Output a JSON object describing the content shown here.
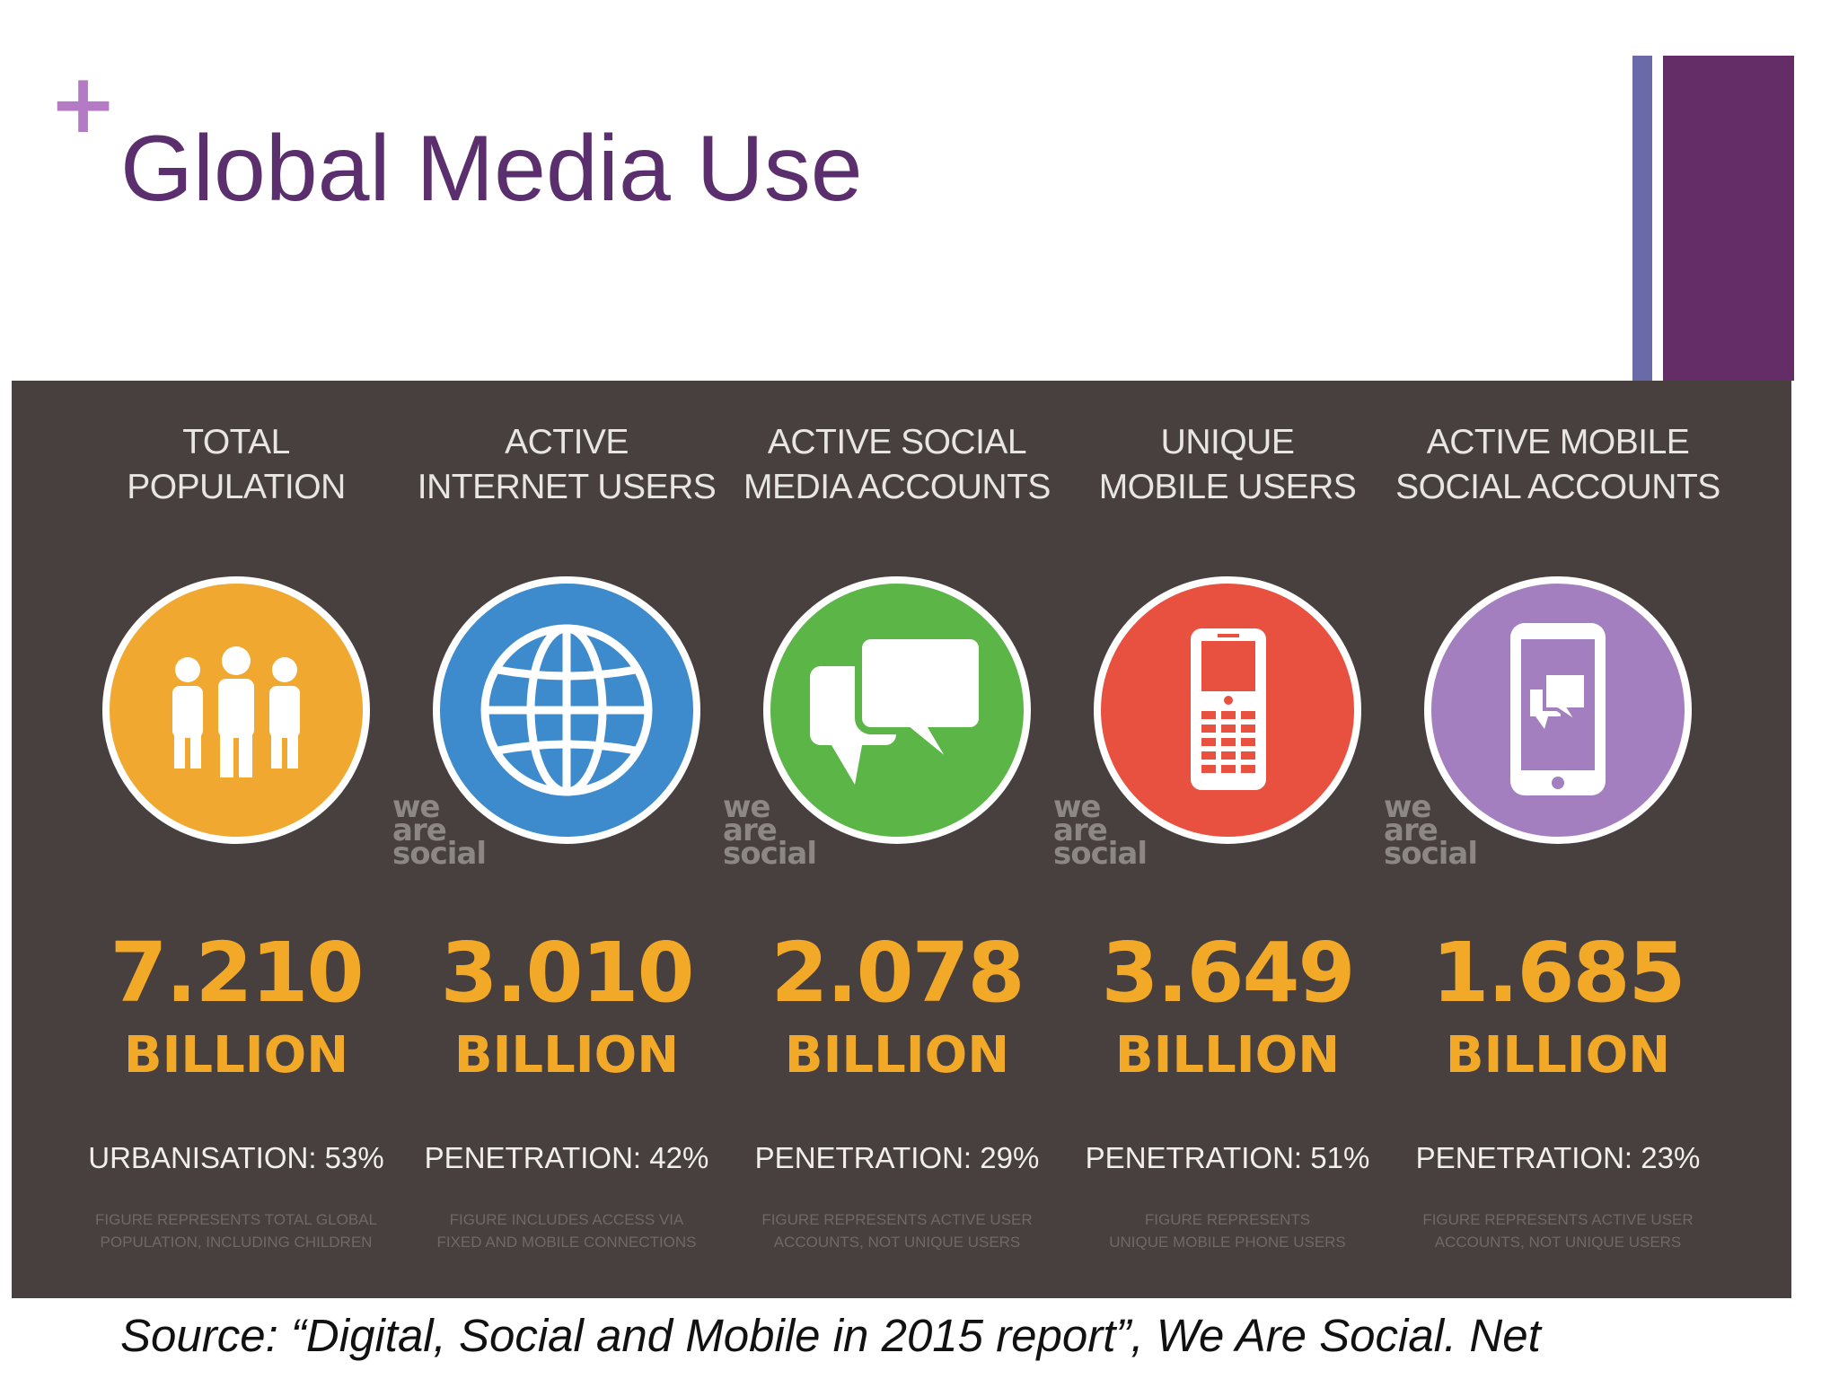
{
  "slide": {
    "plus_glyph": "+",
    "title": "Global Media Use",
    "source": "Source: “Digital, Social and Mobile in 2015 report”, We Are Social. Net",
    "colors": {
      "title": "#5b2f6e",
      "plus": "#b57ac4",
      "bar_thin": "#6a6aa8",
      "bar_thick": "#652d68",
      "panel": "#47403f",
      "figure": "#f3a928"
    }
  },
  "infographic": {
    "watermark": [
      "we",
      "are",
      "social"
    ],
    "columns": [
      {
        "heading_line1": "TOTAL",
        "heading_line2": "POPULATION",
        "icon": "people-icon",
        "circle_color": "#f0a830",
        "figure": "7.210",
        "unit": "BILLION",
        "stat": "URBANISATION: 53%",
        "note_line1": "FIGURE REPRESENTS TOTAL GLOBAL",
        "note_line2": "POPULATION, INCLUDING CHILDREN"
      },
      {
        "heading_line1": "ACTIVE",
        "heading_line2": "INTERNET USERS",
        "icon": "globe-icon",
        "circle_color": "#3d8bcd",
        "figure": "3.010",
        "unit": "BILLION",
        "stat": "PENETRATION: 42%",
        "note_line1": "FIGURE INCLUDES ACCESS VIA",
        "note_line2": "FIXED AND MOBILE CONNECTIONS"
      },
      {
        "heading_line1": "ACTIVE SOCIAL",
        "heading_line2": "MEDIA ACCOUNTS",
        "icon": "chat-bubbles-icon",
        "circle_color": "#5cb547",
        "figure": "2.078",
        "unit": "BILLION",
        "stat": "PENETRATION: 29%",
        "note_line1": "FIGURE REPRESENTS ACTIVE USER",
        "note_line2": "ACCOUNTS, NOT UNIQUE USERS"
      },
      {
        "heading_line1": "UNIQUE",
        "heading_line2": "MOBILE USERS",
        "icon": "mobile-phone-icon",
        "circle_color": "#e8503f",
        "figure": "3.649",
        "unit": "BILLION",
        "stat": "PENETRATION: 51%",
        "note_line1": "FIGURE REPRESENTS",
        "note_line2": "UNIQUE MOBILE PHONE USERS"
      },
      {
        "heading_line1": "ACTIVE MOBILE",
        "heading_line2": "SOCIAL ACCOUNTS",
        "icon": "smartphone-chat-icon",
        "circle_color": "#a37fbf",
        "figure": "1.685",
        "unit": "BILLION",
        "stat": "PENETRATION: 23%",
        "note_line1": "FIGURE REPRESENTS ACTIVE USER",
        "note_line2": "ACCOUNTS, NOT UNIQUE USERS"
      }
    ]
  }
}
